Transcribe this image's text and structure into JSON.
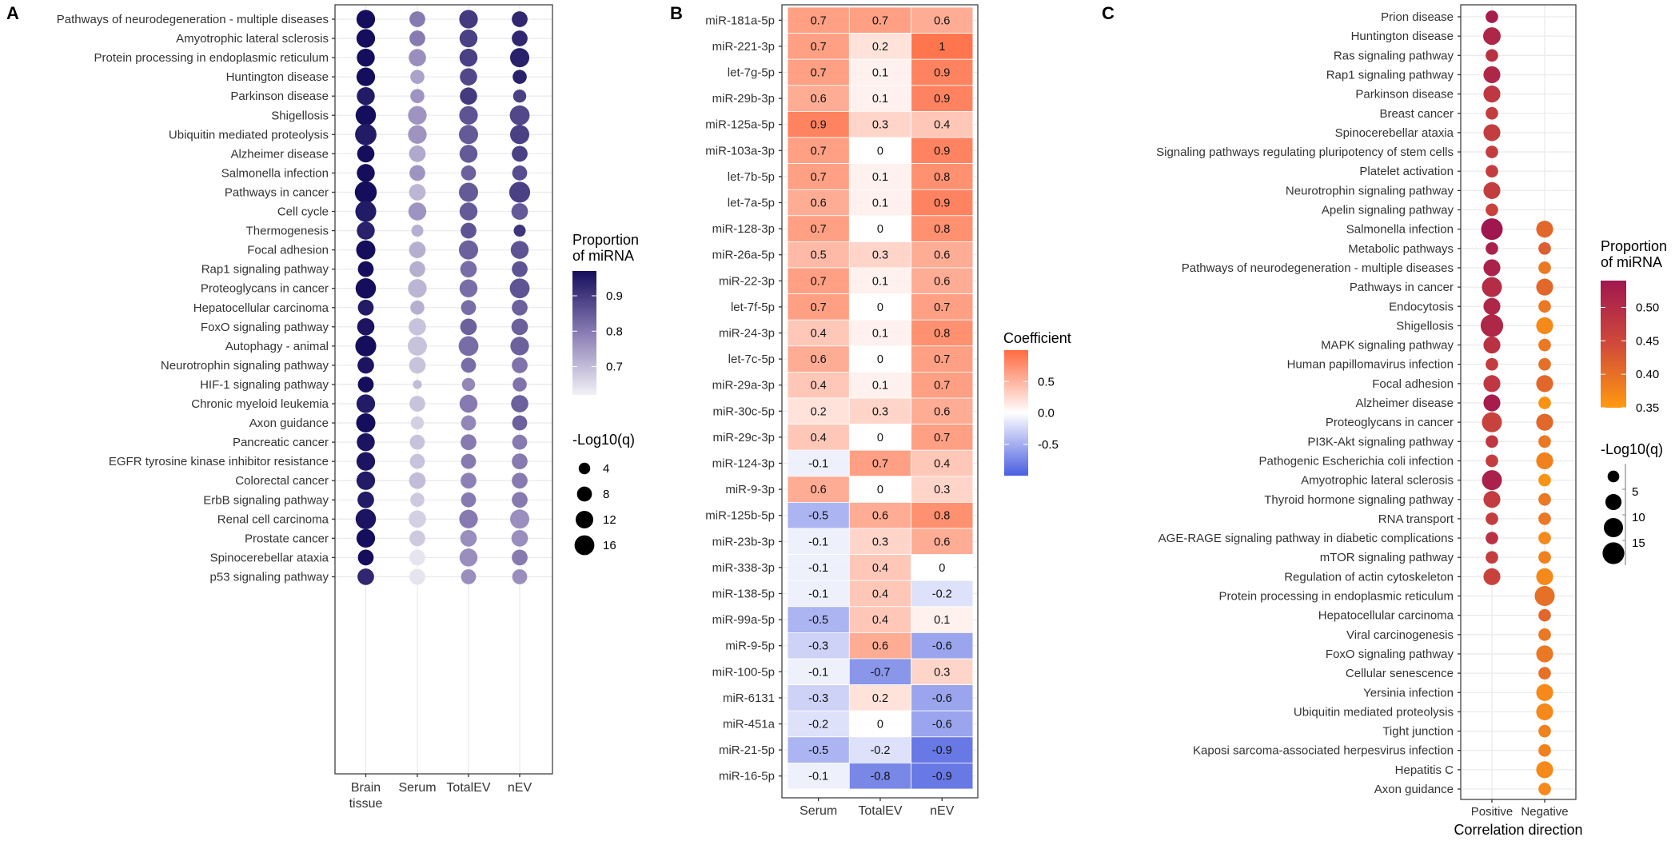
{
  "chart_data": [
    {
      "panel": "A",
      "type": "scatter",
      "subtype": "dot-plot",
      "title": "",
      "xlabel": "",
      "ylabel": "",
      "categories_x": [
        "Brain tissue",
        "Serum",
        "TotalEV",
        "nEV"
      ],
      "x_tick_labels": [
        [
          "Brain",
          "tissue"
        ],
        [
          "Serum"
        ],
        [
          "TotalEV"
        ],
        [
          "nEV"
        ]
      ],
      "categories_y": [
        "Pathways of neurodegeneration - multiple diseases",
        "Amyotrophic lateral sclerosis",
        "Protein processing in endoplasmic reticulum",
        "Huntington disease",
        "Parkinson disease",
        "Shigellosis",
        "Ubiquitin mediated proteolysis",
        "Alzheimer disease",
        "Salmonella infection",
        "Pathways in cancer",
        "Cell cycle",
        "Thermogenesis",
        "Focal adhesion",
        "Rap1 signaling pathway",
        "Proteoglycans in cancer",
        "Hepatocellular carcinoma",
        "FoxO signaling pathway",
        "Autophagy - animal",
        "Neurotrophin signaling pathway",
        "HIF-1 signaling pathway",
        "Chronic myeloid leukemia",
        "Axon guidance",
        "Pancreatic cancer",
        "EGFR tyrosine kinase inhibitor resistance",
        "Colorectal cancer",
        "ErbB signaling pathway",
        "Renal cell carcinoma",
        "Prostate cancer",
        "Spinocerebellar ataxia",
        "p53 signaling pathway"
      ],
      "proportion": [
        [
          0.97,
          0.8,
          0.9,
          0.93
        ],
        [
          0.97,
          0.8,
          0.89,
          0.93
        ],
        [
          0.97,
          0.77,
          0.89,
          0.94
        ],
        [
          0.97,
          0.74,
          0.88,
          0.94
        ],
        [
          0.95,
          0.76,
          0.9,
          0.89
        ],
        [
          0.97,
          0.76,
          0.86,
          0.88
        ],
        [
          0.95,
          0.76,
          0.85,
          0.89
        ],
        [
          0.97,
          0.73,
          0.85,
          0.89
        ],
        [
          0.97,
          0.76,
          0.84,
          0.87
        ],
        [
          0.97,
          0.71,
          0.85,
          0.89
        ],
        [
          0.95,
          0.76,
          0.85,
          0.85
        ],
        [
          0.94,
          0.72,
          0.86,
          0.91
        ],
        [
          0.97,
          0.72,
          0.84,
          0.86
        ],
        [
          0.97,
          0.72,
          0.82,
          0.86
        ],
        [
          0.97,
          0.71,
          0.82,
          0.86
        ],
        [
          0.95,
          0.72,
          0.82,
          0.84
        ],
        [
          0.96,
          0.69,
          0.84,
          0.84
        ],
        [
          0.97,
          0.69,
          0.82,
          0.84
        ],
        [
          0.96,
          0.69,
          0.82,
          0.81
        ],
        [
          0.97,
          0.7,
          0.78,
          0.81
        ],
        [
          0.95,
          0.69,
          0.8,
          0.84
        ],
        [
          0.97,
          0.67,
          0.78,
          0.84
        ],
        [
          0.96,
          0.69,
          0.8,
          0.8
        ],
        [
          0.96,
          0.69,
          0.8,
          0.8
        ],
        [
          0.95,
          0.7,
          0.79,
          0.8
        ],
        [
          0.95,
          0.68,
          0.8,
          0.8
        ],
        [
          0.96,
          0.67,
          0.8,
          0.77
        ],
        [
          0.97,
          0.68,
          0.77,
          0.77
        ],
        [
          0.97,
          0.64,
          0.77,
          0.8
        ],
        [
          0.93,
          0.64,
          0.77,
          0.77
        ]
      ],
      "neg_log10_q": [
        [
          11,
          7,
          11,
          7
        ],
        [
          11,
          7,
          10,
          7
        ],
        [
          10,
          9,
          10,
          12
        ],
        [
          11,
          5,
          9,
          5
        ],
        [
          10,
          5,
          9,
          4
        ],
        [
          14,
          11,
          11,
          13
        ],
        [
          16,
          11,
          12,
          12
        ],
        [
          9,
          8,
          10,
          7
        ],
        [
          10,
          7,
          6,
          6
        ],
        [
          17,
          8,
          12,
          15
        ],
        [
          15,
          10,
          10,
          8
        ],
        [
          10,
          3,
          7,
          3
        ],
        [
          12,
          8,
          12,
          10
        ],
        [
          7,
          7,
          8,
          7
        ],
        [
          14,
          11,
          10,
          13
        ],
        [
          7,
          5,
          6,
          7
        ],
        [
          9,
          9,
          8,
          8
        ],
        [
          15,
          12,
          13,
          11
        ],
        [
          8,
          8,
          6,
          7
        ],
        [
          7,
          1,
          4,
          5
        ],
        [
          11,
          7,
          10,
          9
        ],
        [
          12,
          4,
          6,
          6
        ],
        [
          10,
          6,
          7,
          6
        ],
        [
          11,
          6,
          6,
          7
        ],
        [
          11,
          8,
          7,
          7
        ],
        [
          8,
          5,
          6,
          7
        ],
        [
          14,
          9,
          11,
          12
        ],
        [
          11,
          7,
          8,
          8
        ],
        [
          7,
          7,
          10,
          7
        ],
        [
          8,
          7,
          6,
          6
        ]
      ],
      "color_legend": {
        "title": [
          "Proportion",
          "of miRNA"
        ],
        "ticks": [
          0.9,
          0.8,
          0.7
        ],
        "tick_labels": [
          "0.9",
          "0.8",
          "0.7"
        ],
        "range": [
          0.62,
          0.97
        ],
        "low_color": "#f2f1f6",
        "high_color": "#150e5c"
      },
      "size_legend": {
        "title": "-Log10(q)",
        "values": [
          4,
          8,
          12,
          16
        ],
        "labels": [
          "4",
          "8",
          "12",
          "16"
        ]
      },
      "legend_position": "right",
      "grid": true
    },
    {
      "panel": "B",
      "type": "heatmap",
      "title": "",
      "xlabel": "",
      "ylabel": "",
      "columns": [
        "Serum",
        "TotalEV",
        "nEV"
      ],
      "rows": [
        "miR-181a-5p",
        "miR-221-3p",
        "let-7g-5p",
        "miR-29b-3p",
        "miR-125a-5p",
        "miR-103a-3p",
        "let-7b-5p",
        "let-7a-5p",
        "miR-128-3p",
        "miR-26a-5p",
        "miR-22-3p",
        "let-7f-5p",
        "miR-24-3p",
        "let-7c-5p",
        "miR-29a-3p",
        "miR-30c-5p",
        "miR-29c-3p",
        "miR-124-3p",
        "miR-9-3p",
        "miR-125b-5p",
        "miR-23b-3p",
        "miR-338-3p",
        "miR-138-5p",
        "miR-99a-5p",
        "miR-9-5p",
        "miR-100-5p",
        "miR-6131",
        "miR-451a",
        "miR-21-5p",
        "miR-16-5p"
      ],
      "values": [
        [
          0.7,
          0.7,
          0.6
        ],
        [
          0.7,
          0.2,
          1
        ],
        [
          0.7,
          0.1,
          0.9
        ],
        [
          0.6,
          0.1,
          0.9
        ],
        [
          0.9,
          0.3,
          0.4
        ],
        [
          0.7,
          0,
          0.9
        ],
        [
          0.7,
          0.1,
          0.8
        ],
        [
          0.6,
          0.1,
          0.9
        ],
        [
          0.7,
          0,
          0.8
        ],
        [
          0.5,
          0.3,
          0.6
        ],
        [
          0.7,
          0.1,
          0.6
        ],
        [
          0.7,
          0,
          0.7
        ],
        [
          0.4,
          0.1,
          0.8
        ],
        [
          0.6,
          0,
          0.7
        ],
        [
          0.4,
          0.1,
          0.7
        ],
        [
          0.2,
          0.3,
          0.6
        ],
        [
          0.4,
          0,
          0.7
        ],
        [
          -0.1,
          0.7,
          0.4
        ],
        [
          0.6,
          0,
          0.3
        ],
        [
          -0.5,
          0.6,
          0.8
        ],
        [
          -0.1,
          0.3,
          0.6
        ],
        [
          -0.1,
          0.4,
          0
        ],
        [
          -0.1,
          0.4,
          -0.2
        ],
        [
          -0.5,
          0.4,
          0.1
        ],
        [
          -0.3,
          0.6,
          -0.6
        ],
        [
          -0.1,
          -0.7,
          0.3
        ],
        [
          -0.3,
          0.2,
          -0.6
        ],
        [
          -0.2,
          0,
          -0.6
        ],
        [
          -0.5,
          -0.2,
          -0.9
        ],
        [
          -0.1,
          -0.8,
          -0.9
        ]
      ],
      "color_legend": {
        "title": "Coefficient",
        "ticks": [
          0.5,
          0.0,
          -0.5
        ],
        "tick_labels": [
          "0.5",
          "0.0",
          "-0.5"
        ],
        "range": [
          -1,
          1
        ],
        "low_color": "#4a5ee0",
        "mid_color": "#ffffff",
        "high_color": "#ff6a40"
      },
      "legend_position": "right"
    },
    {
      "panel": "C",
      "type": "scatter",
      "subtype": "dot-plot",
      "title": "",
      "xlabel": "Correlation direction",
      "ylabel": "",
      "categories_x": [
        "Positive",
        "Negative"
      ],
      "categories_y": [
        "Prion disease",
        "Huntington disease",
        "Ras signaling pathway",
        "Rap1 signaling pathway",
        "Parkinson disease",
        "Breast cancer",
        "Spinocerebellar ataxia",
        "Signaling pathways regulating pluripotency of stem cells",
        "Platelet activation",
        "Neurotrophin signaling pathway",
        "Apelin signaling pathway",
        "Salmonella infection",
        "Metabolic pathways",
        "Pathways of neurodegeneration - multiple diseases",
        "Pathways in cancer",
        "Endocytosis",
        "Shigellosis",
        "MAPK signaling pathway",
        "Human papillomavirus infection",
        "Focal adhesion",
        "Alzheimer disease",
        "Proteoglycans in cancer",
        "PI3K-Akt signaling pathway",
        "Pathogenic Escherichia coli infection",
        "Amyotrophic lateral sclerosis",
        "Thyroid hormone signaling pathway",
        "RNA transport",
        "AGE-RAGE signaling pathway in diabetic complications",
        "mTOR signaling pathway",
        "Regulation of actin cytoskeleton",
        "Protein processing in endoplasmic reticulum",
        "Hepatocellular carcinoma",
        "Viral carcinogenesis",
        "FoxO signaling pathway",
        "Cellular senescence",
        "Yersinia infection",
        "Ubiquitin mediated proteolysis",
        "Tight junction",
        "Kaposi sarcoma-associated herpesvirus infection",
        "Hepatitis C",
        "Axon guidance"
      ],
      "positive_proportion": [
        0.53,
        0.51,
        0.49,
        0.51,
        0.48,
        0.47,
        0.47,
        0.47,
        0.47,
        0.47,
        0.46,
        0.54,
        0.52,
        0.52,
        0.5,
        0.51,
        0.51,
        0.49,
        0.47,
        0.48,
        0.53,
        0.46,
        0.48,
        0.47,
        0.52,
        0.47,
        0.47,
        0.49,
        0.47,
        0.46,
        null,
        null,
        null,
        null,
        null,
        null,
        null,
        null,
        null,
        null,
        null
      ],
      "positive_neg_log10_q": [
        3,
        9,
        3,
        8,
        8,
        3,
        8,
        3,
        3,
        8,
        3,
        16,
        3,
        8,
        13,
        8,
        18,
        8,
        3,
        8,
        8,
        13,
        3,
        3,
        13,
        8,
        3,
        3,
        3,
        8,
        null,
        null,
        null,
        null,
        null,
        null,
        null,
        null,
        null,
        null,
        null
      ],
      "negative_proportion": [
        null,
        null,
        null,
        null,
        null,
        null,
        null,
        null,
        null,
        null,
        null,
        0.41,
        0.42,
        0.39,
        0.41,
        0.39,
        0.37,
        0.39,
        0.4,
        0.41,
        0.36,
        0.41,
        0.39,
        0.38,
        0.36,
        0.39,
        0.39,
        0.37,
        0.38,
        0.37,
        0.4,
        0.41,
        0.39,
        0.39,
        0.4,
        0.37,
        0.37,
        0.38,
        0.38,
        0.37,
        0.37
      ],
      "negative_neg_log10_q": [
        null,
        null,
        null,
        null,
        null,
        null,
        null,
        null,
        null,
        null,
        null,
        8,
        3,
        3,
        8,
        3,
        8,
        3,
        3,
        8,
        3,
        8,
        3,
        8,
        3,
        3,
        3,
        3,
        3,
        8,
        13,
        3,
        3,
        8,
        3,
        8,
        8,
        3,
        3,
        8,
        3
      ],
      "color_legend": {
        "title": [
          "Proportion",
          "of miRNA"
        ],
        "ticks": [
          0.5,
          0.45,
          0.4,
          0.35
        ],
        "tick_labels": [
          "0.50",
          "0.45",
          "0.40",
          "0.35"
        ],
        "range": [
          0.35,
          0.54
        ],
        "low_color": "#ff9a10",
        "high_color": "#a0174f"
      },
      "size_legend": {
        "title": "-Log10(q)",
        "values": [
          5,
          10,
          15
        ],
        "labels": [
          "5",
          "10",
          "15"
        ]
      },
      "legend_position": "right",
      "grid": true
    }
  ],
  "panel_labels": [
    "A",
    "B",
    "C"
  ]
}
